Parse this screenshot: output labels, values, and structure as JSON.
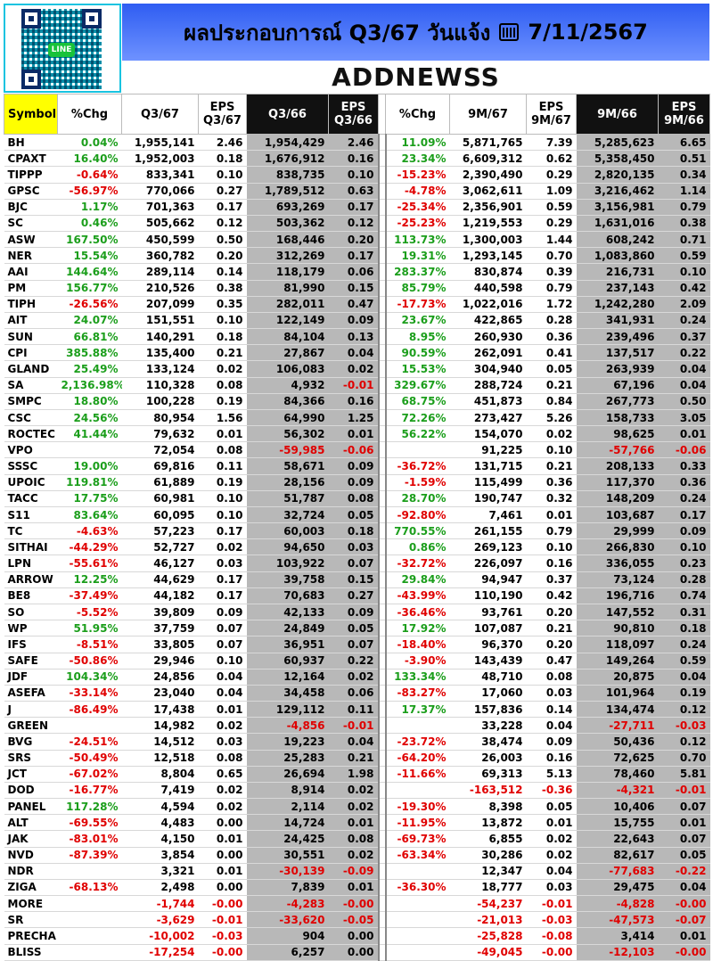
{
  "header": {
    "qr_label": "LINE",
    "title": "ผลประกอบการณ์ Q3/67 วันแจ้ง",
    "date": "7/11/2567",
    "brand": "ADDNEWSS"
  },
  "table": {
    "columns": [
      {
        "label": "Symbol",
        "label2": ""
      },
      {
        "label": "%Chg",
        "label2": ""
      },
      {
        "label": "Q3/67",
        "label2": ""
      },
      {
        "label": "EPS",
        "label2": "Q3/67"
      },
      {
        "label": "Q3/66",
        "label2": ""
      },
      {
        "label": "EPS",
        "label2": "Q3/66"
      },
      {
        "label": "%Chg",
        "label2": ""
      },
      {
        "label": "9M/67",
        "label2": ""
      },
      {
        "label": "EPS",
        "label2": "9M/67"
      },
      {
        "label": "9M/66",
        "label2": ""
      },
      {
        "label": "EPS",
        "label2": "9M/66"
      }
    ],
    "rows": [
      [
        "BH",
        "0.04%",
        "1,955,141",
        "2.46",
        "1,954,429",
        "2.46",
        "11.09%",
        "5,871,765",
        "7.39",
        "5,285,623",
        "6.65"
      ],
      [
        "CPAXT",
        "16.40%",
        "1,952,003",
        "0.18",
        "1,676,912",
        "0.16",
        "23.34%",
        "6,609,312",
        "0.62",
        "5,358,450",
        "0.51"
      ],
      [
        "TIPPP",
        "-0.64%",
        "833,341",
        "0.10",
        "838,735",
        "0.10",
        "-15.23%",
        "2,390,490",
        "0.29",
        "2,820,135",
        "0.34"
      ],
      [
        "GPSC",
        "-56.97%",
        "770,066",
        "0.27",
        "1,789,512",
        "0.63",
        "-4.78%",
        "3,062,611",
        "1.09",
        "3,216,462",
        "1.14"
      ],
      [
        "BJC",
        "1.17%",
        "701,363",
        "0.17",
        "693,269",
        "0.17",
        "-25.34%",
        "2,356,901",
        "0.59",
        "3,156,981",
        "0.79"
      ],
      [
        "SC",
        "0.46%",
        "505,662",
        "0.12",
        "503,362",
        "0.12",
        "-25.23%",
        "1,219,553",
        "0.29",
        "1,631,016",
        "0.38"
      ],
      [
        "ASW",
        "167.50%",
        "450,599",
        "0.50",
        "168,446",
        "0.20",
        "113.73%",
        "1,300,003",
        "1.44",
        "608,242",
        "0.71"
      ],
      [
        "NER",
        "15.54%",
        "360,782",
        "0.20",
        "312,269",
        "0.17",
        "19.31%",
        "1,293,145",
        "0.70",
        "1,083,860",
        "0.59"
      ],
      [
        "AAI",
        "144.64%",
        "289,114",
        "0.14",
        "118,179",
        "0.06",
        "283.37%",
        "830,874",
        "0.39",
        "216,731",
        "0.10"
      ],
      [
        "PM",
        "156.77%",
        "210,526",
        "0.38",
        "81,990",
        "0.15",
        "85.79%",
        "440,598",
        "0.79",
        "237,143",
        "0.42"
      ],
      [
        "TIPH",
        "-26.56%",
        "207,099",
        "0.35",
        "282,011",
        "0.47",
        "-17.73%",
        "1,022,016",
        "1.72",
        "1,242,280",
        "2.09"
      ],
      [
        "AIT",
        "24.07%",
        "151,551",
        "0.10",
        "122,149",
        "0.09",
        "23.67%",
        "422,865",
        "0.28",
        "341,931",
        "0.24"
      ],
      [
        "SUN",
        "66.81%",
        "140,291",
        "0.18",
        "84,104",
        "0.13",
        "8.95%",
        "260,930",
        "0.36",
        "239,496",
        "0.37"
      ],
      [
        "CPI",
        "385.88%",
        "135,400",
        "0.21",
        "27,867",
        "0.04",
        "90.59%",
        "262,091",
        "0.41",
        "137,517",
        "0.22"
      ],
      [
        "GLAND",
        "25.49%",
        "133,124",
        "0.02",
        "106,083",
        "0.02",
        "15.53%",
        "304,940",
        "0.05",
        "263,939",
        "0.04"
      ],
      [
        "SA",
        "2,136.98%",
        "110,328",
        "0.08",
        "4,932",
        "-0.01",
        "329.67%",
        "288,724",
        "0.21",
        "67,196",
        "0.04"
      ],
      [
        "SMPC",
        "18.80%",
        "100,228",
        "0.19",
        "84,366",
        "0.16",
        "68.75%",
        "451,873",
        "0.84",
        "267,773",
        "0.50"
      ],
      [
        "CSC",
        "24.56%",
        "80,954",
        "1.56",
        "64,990",
        "1.25",
        "72.26%",
        "273,427",
        "5.26",
        "158,733",
        "3.05"
      ],
      [
        "ROCTEC",
        "41.44%",
        "79,632",
        "0.01",
        "56,302",
        "0.01",
        "56.22%",
        "154,070",
        "0.02",
        "98,625",
        "0.01"
      ],
      [
        "VPO",
        "",
        "72,054",
        "0.08",
        "-59,985",
        "-0.06",
        "",
        "91,225",
        "0.10",
        "-57,766",
        "-0.06"
      ],
      [
        "SSSC",
        "19.00%",
        "69,816",
        "0.11",
        "58,671",
        "0.09",
        "-36.72%",
        "131,715",
        "0.21",
        "208,133",
        "0.33"
      ],
      [
        "UPOIC",
        "119.81%",
        "61,889",
        "0.19",
        "28,156",
        "0.09",
        "-1.59%",
        "115,499",
        "0.36",
        "117,370",
        "0.36"
      ],
      [
        "TACC",
        "17.75%",
        "60,981",
        "0.10",
        "51,787",
        "0.08",
        "28.70%",
        "190,747",
        "0.32",
        "148,209",
        "0.24"
      ],
      [
        "S11",
        "83.64%",
        "60,095",
        "0.10",
        "32,724",
        "0.05",
        "-92.80%",
        "7,461",
        "0.01",
        "103,687",
        "0.17"
      ],
      [
        "TC",
        "-4.63%",
        "57,223",
        "0.17",
        "60,003",
        "0.18",
        "770.55%",
        "261,155",
        "0.79",
        "29,999",
        "0.09"
      ],
      [
        "SITHAI",
        "-44.29%",
        "52,727",
        "0.02",
        "94,650",
        "0.03",
        "0.86%",
        "269,123",
        "0.10",
        "266,830",
        "0.10"
      ],
      [
        "LPN",
        "-55.61%",
        "46,127",
        "0.03",
        "103,922",
        "0.07",
        "-32.72%",
        "226,097",
        "0.16",
        "336,055",
        "0.23"
      ],
      [
        "ARROW",
        "12.25%",
        "44,629",
        "0.17",
        "39,758",
        "0.15",
        "29.84%",
        "94,947",
        "0.37",
        "73,124",
        "0.28"
      ],
      [
        "BE8",
        "-37.49%",
        "44,182",
        "0.17",
        "70,683",
        "0.27",
        "-43.99%",
        "110,190",
        "0.42",
        "196,716",
        "0.74"
      ],
      [
        "SO",
        "-5.52%",
        "39,809",
        "0.09",
        "42,133",
        "0.09",
        "-36.46%",
        "93,761",
        "0.20",
        "147,552",
        "0.31"
      ],
      [
        "WP",
        "51.95%",
        "37,759",
        "0.07",
        "24,849",
        "0.05",
        "17.92%",
        "107,087",
        "0.21",
        "90,810",
        "0.18"
      ],
      [
        "IFS",
        "-8.51%",
        "33,805",
        "0.07",
        "36,951",
        "0.07",
        "-18.40%",
        "96,370",
        "0.20",
        "118,097",
        "0.24"
      ],
      [
        "SAFE",
        "-50.86%",
        "29,946",
        "0.10",
        "60,937",
        "0.22",
        "-3.90%",
        "143,439",
        "0.47",
        "149,264",
        "0.59"
      ],
      [
        "JDF",
        "104.34%",
        "24,856",
        "0.04",
        "12,164",
        "0.02",
        "133.34%",
        "48,710",
        "0.08",
        "20,875",
        "0.04"
      ],
      [
        "ASEFA",
        "-33.14%",
        "23,040",
        "0.04",
        "34,458",
        "0.06",
        "-83.27%",
        "17,060",
        "0.03",
        "101,964",
        "0.19"
      ],
      [
        "J",
        "-86.49%",
        "17,438",
        "0.01",
        "129,112",
        "0.11",
        "17.37%",
        "157,836",
        "0.14",
        "134,474",
        "0.12"
      ],
      [
        "GREEN",
        "",
        "14,982",
        "0.02",
        "-4,856",
        "-0.01",
        "",
        "33,228",
        "0.04",
        "-27,711",
        "-0.03"
      ],
      [
        "BVG",
        "-24.51%",
        "14,512",
        "0.03",
        "19,223",
        "0.04",
        "-23.72%",
        "38,474",
        "0.09",
        "50,436",
        "0.12"
      ],
      [
        "SRS",
        "-50.49%",
        "12,518",
        "0.08",
        "25,283",
        "0.21",
        "-64.20%",
        "26,003",
        "0.16",
        "72,625",
        "0.70"
      ],
      [
        "JCT",
        "-67.02%",
        "8,804",
        "0.65",
        "26,694",
        "1.98",
        "-11.66%",
        "69,313",
        "5.13",
        "78,460",
        "5.81"
      ],
      [
        "DOD",
        "-16.77%",
        "7,419",
        "0.02",
        "8,914",
        "0.02",
        "",
        "-163,512",
        "-0.36",
        "-4,321",
        "-0.01"
      ],
      [
        "PANEL",
        "117.28%",
        "4,594",
        "0.02",
        "2,114",
        "0.02",
        "-19.30%",
        "8,398",
        "0.05",
        "10,406",
        "0.07"
      ],
      [
        "ALT",
        "-69.55%",
        "4,483",
        "0.00",
        "14,724",
        "0.01",
        "-11.95%",
        "13,872",
        "0.01",
        "15,755",
        "0.01"
      ],
      [
        "JAK",
        "-83.01%",
        "4,150",
        "0.01",
        "24,425",
        "0.08",
        "-69.73%",
        "6,855",
        "0.02",
        "22,643",
        "0.07"
      ],
      [
        "NVD",
        "-87.39%",
        "3,854",
        "0.00",
        "30,551",
        "0.02",
        "-63.34%",
        "30,286",
        "0.02",
        "82,617",
        "0.05"
      ],
      [
        "NDR",
        "",
        "3,321",
        "0.01",
        "-30,139",
        "-0.09",
        "",
        "12,347",
        "0.04",
        "-77,683",
        "-0.22"
      ],
      [
        "ZIGA",
        "-68.13%",
        "2,498",
        "0.00",
        "7,839",
        "0.01",
        "-36.30%",
        "18,777",
        "0.03",
        "29,475",
        "0.04"
      ],
      [
        "MORE",
        "",
        "-1,744",
        "-0.00",
        "-4,283",
        "-0.00",
        "",
        "-54,237",
        "-0.01",
        "-4,828",
        "-0.00"
      ],
      [
        "SR",
        "",
        "-3,629",
        "-0.01",
        "-33,620",
        "-0.05",
        "",
        "-21,013",
        "-0.03",
        "-47,573",
        "-0.07"
      ],
      [
        "PRECHA",
        "",
        "-10,002",
        "-0.03",
        "904",
        "0.00",
        "",
        "-25,828",
        "-0.08",
        "3,414",
        "0.01"
      ],
      [
        "BLISS",
        "",
        "-17,254",
        "-0.00",
        "6,257",
        "0.00",
        "",
        "-49,045",
        "-0.00",
        "-12,103",
        "-0.00"
      ]
    ]
  }
}
